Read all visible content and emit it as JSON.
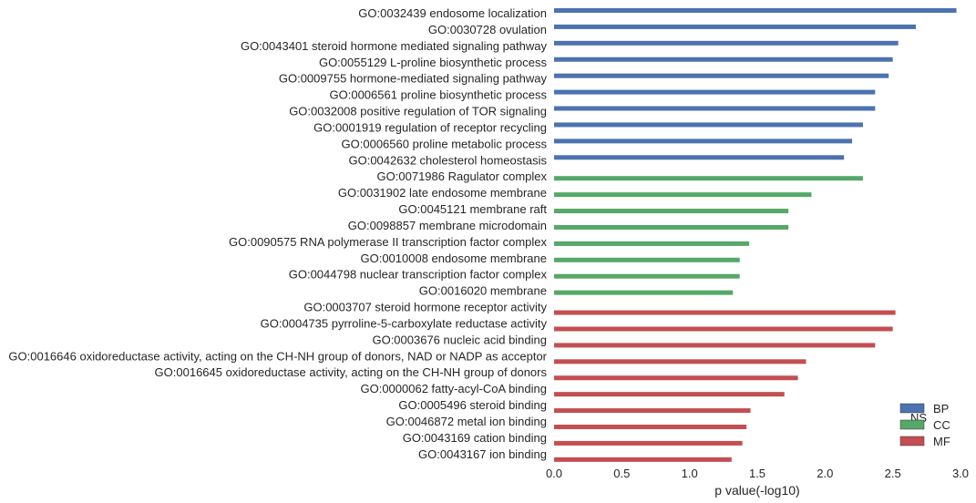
{
  "chart_data": {
    "type": "bar",
    "orientation": "horizontal",
    "xlabel": "p value(-log10)",
    "ylabel": "",
    "xlim": [
      0,
      3.0
    ],
    "xticks": [
      "0.0",
      "0.5",
      "1.0",
      "1.5",
      "2.0",
      "2.5",
      "3.0"
    ],
    "grid": false,
    "legend": {
      "title": "NS",
      "position": "bottom-right",
      "entries": [
        {
          "name": "BP",
          "color": "#4c72b0"
        },
        {
          "name": "CC",
          "color": "#55a868"
        },
        {
          "name": "MF",
          "color": "#c44e52"
        }
      ]
    },
    "categories": [
      {
        "label": "GO:0032439 endosome localization",
        "ns": "BP",
        "value": 2.97
      },
      {
        "label": "GO:0030728 ovulation",
        "ns": "BP",
        "value": 2.67
      },
      {
        "label": "GO:0043401 steroid hormone mediated signaling pathway",
        "ns": "BP",
        "value": 2.54
      },
      {
        "label": "GO:0055129 L-proline biosynthetic process",
        "ns": "BP",
        "value": 2.5
      },
      {
        "label": "GO:0009755 hormone-mediated signaling pathway",
        "ns": "BP",
        "value": 2.47
      },
      {
        "label": "GO:0006561 proline biosynthetic process",
        "ns": "BP",
        "value": 2.37
      },
      {
        "label": "GO:0032008 positive regulation of TOR signaling",
        "ns": "BP",
        "value": 2.37
      },
      {
        "label": "GO:0001919 regulation of receptor recycling",
        "ns": "BP",
        "value": 2.28
      },
      {
        "label": "GO:0006560 proline metabolic process",
        "ns": "BP",
        "value": 2.2
      },
      {
        "label": "GO:0042632 cholesterol homeostasis",
        "ns": "BP",
        "value": 2.14
      },
      {
        "label": "GO:0071986 Ragulator complex",
        "ns": "CC",
        "value": 2.28
      },
      {
        "label": "GO:0031902 late endosome membrane",
        "ns": "CC",
        "value": 1.9
      },
      {
        "label": "GO:0045121 membrane raft",
        "ns": "CC",
        "value": 1.73
      },
      {
        "label": "GO:0098857 membrane microdomain",
        "ns": "CC",
        "value": 1.73
      },
      {
        "label": "GO:0090575 RNA polymerase II transcription factor complex",
        "ns": "CC",
        "value": 1.44
      },
      {
        "label": "GO:0010008 endosome membrane",
        "ns": "CC",
        "value": 1.37
      },
      {
        "label": "GO:0044798 nuclear transcription factor complex",
        "ns": "CC",
        "value": 1.37
      },
      {
        "label": "GO:0016020 membrane",
        "ns": "CC",
        "value": 1.32
      },
      {
        "label": "GO:0003707 steroid hormone receptor activity",
        "ns": "MF",
        "value": 2.52
      },
      {
        "label": "GO:0004735 pyrroline-5-carboxylate reductase activity",
        "ns": "MF",
        "value": 2.5
      },
      {
        "label": "GO:0003676 nucleic acid binding",
        "ns": "MF",
        "value": 2.37
      },
      {
        "label": "GO:0016646 oxidoreductase activity, acting on the CH-NH group of donors, NAD or NADP as acceptor",
        "ns": "MF",
        "value": 1.86
      },
      {
        "label": "GO:0016645 oxidoreductase activity, acting on the CH-NH group of donors",
        "ns": "MF",
        "value": 1.8
      },
      {
        "label": "GO:0000062 fatty-acyl-CoA binding",
        "ns": "MF",
        "value": 1.7
      },
      {
        "label": "GO:0005496 steroid binding",
        "ns": "MF",
        "value": 1.45
      },
      {
        "label": "GO:0046872 metal ion binding",
        "ns": "MF",
        "value": 1.42
      },
      {
        "label": "GO:0043169 cation binding",
        "ns": "MF",
        "value": 1.39
      },
      {
        "label": "GO:0043167 ion binding",
        "ns": "MF",
        "value": 1.31
      }
    ]
  }
}
